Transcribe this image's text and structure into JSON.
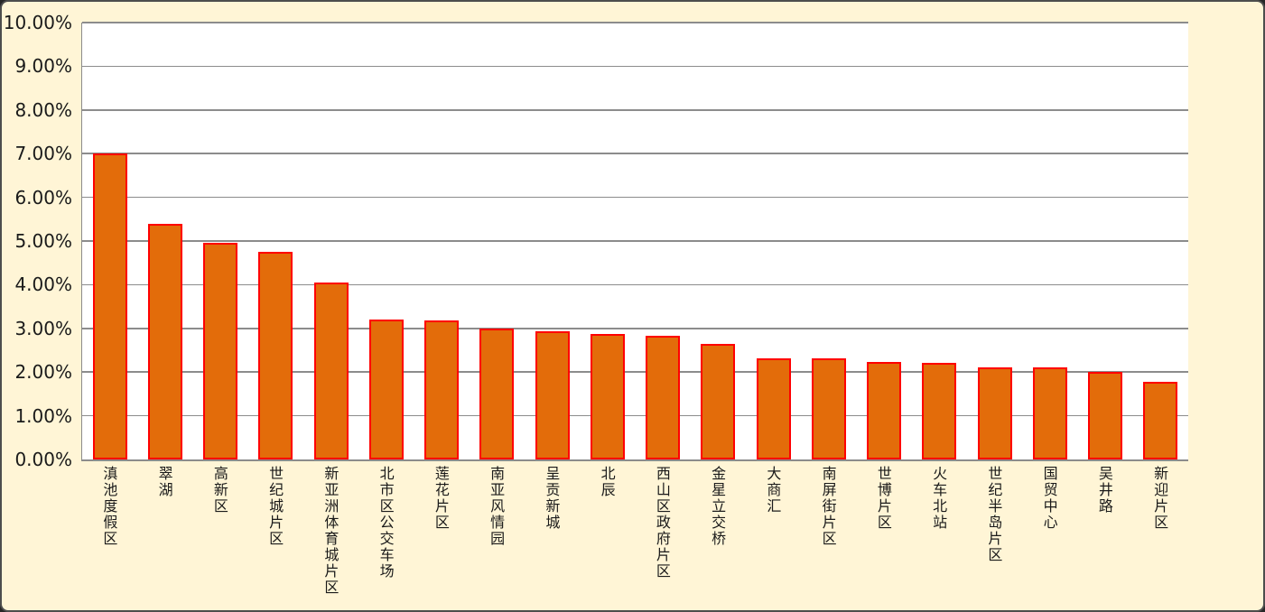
{
  "chart_data": {
    "type": "bar",
    "title": "",
    "legend": "none",
    "grid": "horizontal",
    "ylim": [
      0,
      10
    ],
    "y_tick_labels": [
      "0.00%",
      "1.00%",
      "2.00%",
      "3.00%",
      "4.00%",
      "5.00%",
      "6.00%",
      "7.00%",
      "8.00%",
      "9.00%",
      "10.00%"
    ],
    "categories": [
      "滇池度假区",
      "翠湖",
      "高新区",
      "世纪城片区",
      "新亚洲体育城片区",
      "北市区公交车场",
      "莲花片区",
      "南亚风情园",
      "呈贡新城",
      "北辰",
      "西山区政府片区",
      "金星立交桥",
      "大商汇",
      "南屏街片区",
      "世博片区",
      "火车北站",
      "世纪半岛片区",
      "国贸中心",
      "吴井路",
      "新迎片区"
    ],
    "values": [
      7.0,
      5.4,
      4.95,
      4.75,
      4.05,
      3.21,
      3.19,
      3.0,
      2.94,
      2.87,
      2.83,
      2.64,
      2.32,
      2.32,
      2.23,
      2.21,
      2.1,
      2.1,
      2.0,
      1.78
    ],
    "colors": {
      "bar_fill": "#E36C0A",
      "bar_border": "#FF0000",
      "chart_background": "#FFF5D6",
      "plot_background": "#FFFFFF",
      "gridline": "#8C8C8C",
      "axis_line": "#8C8C8C",
      "tick_text": "#1A1A1A",
      "frame_border": "#4D4D4D"
    }
  }
}
